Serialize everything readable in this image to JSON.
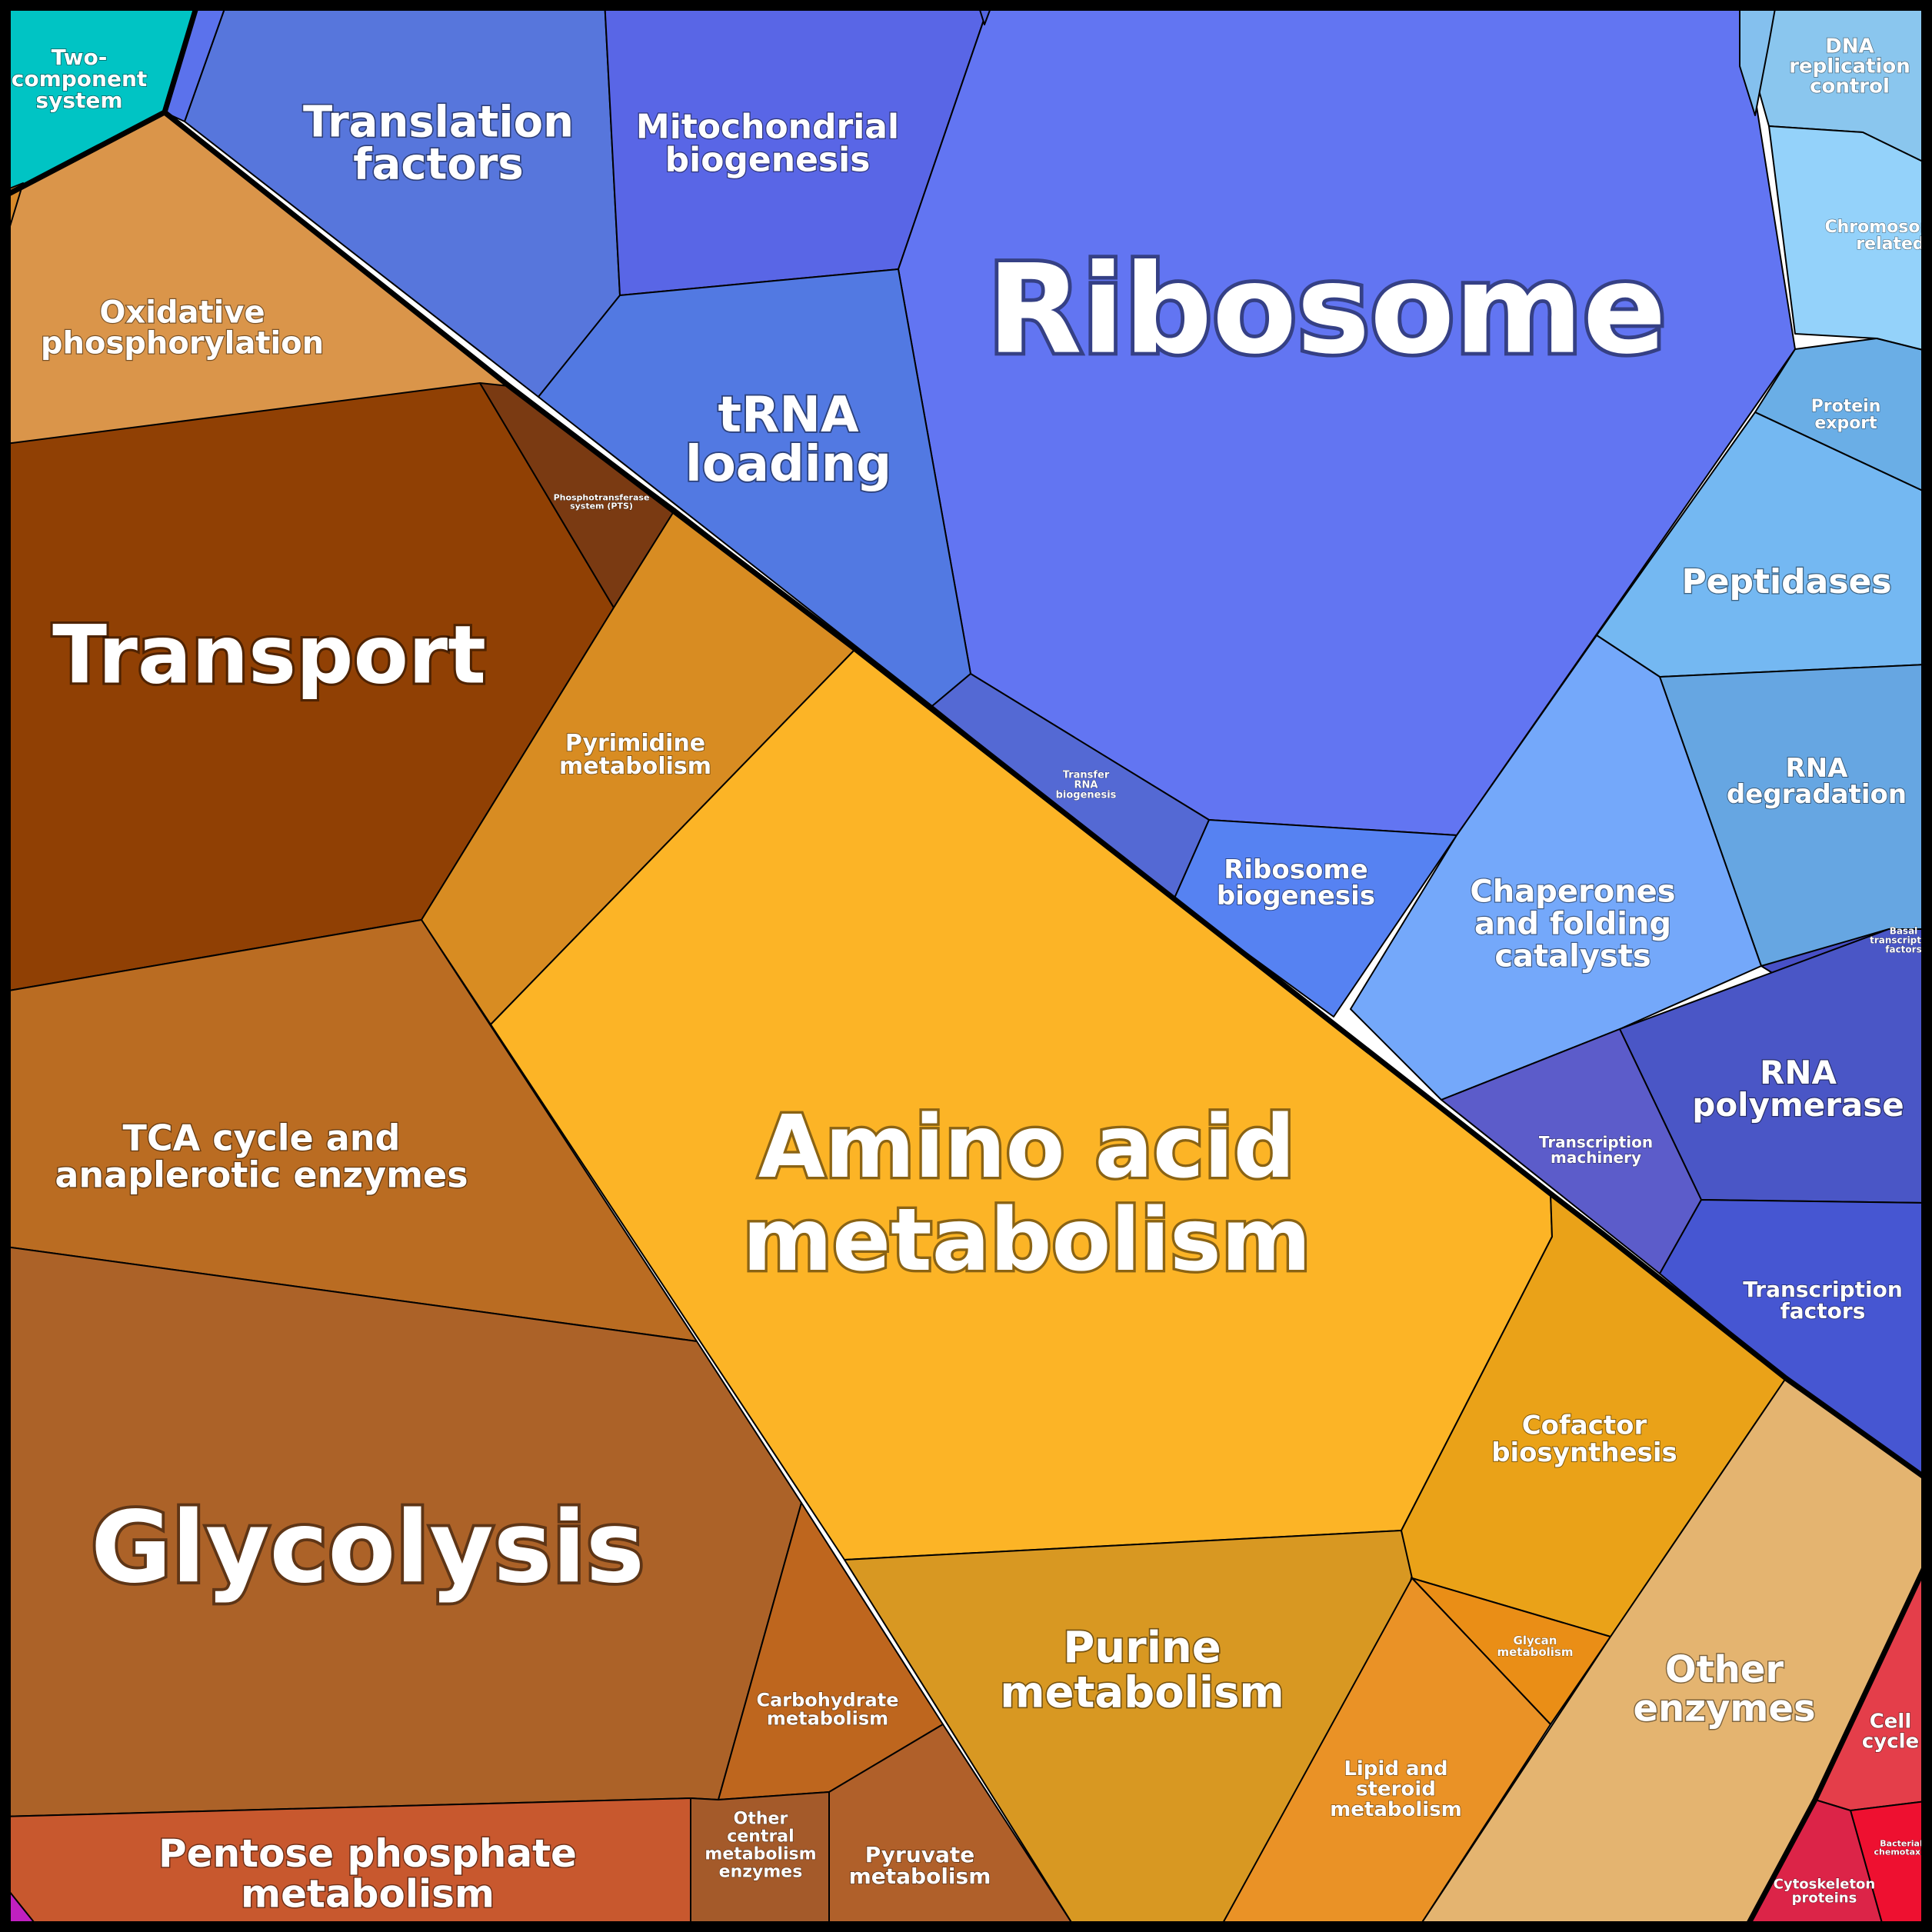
{
  "colors": {
    "metabolism": "#d99528",
    "genetic_information": "#5b72ec",
    "cellular_processes": "#66b3f0",
    "environmental": "#00c4c4"
  },
  "cells": [
    {
      "id": "two-component-system",
      "label": "Two-\ncomponent\nsystem",
      "color": "#00c4c4"
    },
    {
      "id": "translation-factors",
      "label": "Translation\nfactors",
      "color": "#5776dc"
    },
    {
      "id": "mitochondrial-biogenesis",
      "label": "Mitochondrial\nbiogenesis",
      "color": "#5966e6"
    },
    {
      "id": "ribosome",
      "label": "Ribosome",
      "color": "#6275f2"
    },
    {
      "id": "trna-loading",
      "label": "tRNA\nloading",
      "color": "#5279e2"
    },
    {
      "id": "transfer-rna-biogenesis",
      "label": "Transfer\nRNA\nbiogenesis",
      "color": "#5469d4"
    },
    {
      "id": "ribosome-biogenesis",
      "label": "Ribosome\nbiogenesis",
      "color": "#5682f2"
    },
    {
      "id": "dna-replication-control",
      "label": "DNA\nreplication\ncontrol",
      "color": "#8ac6ee"
    },
    {
      "id": "chromosome-related",
      "label": "Chromosome-\nrelated",
      "color": "#94d2fa"
    },
    {
      "id": "protein-export",
      "label": "Protein\nexport",
      "color": "#6aaee6"
    },
    {
      "id": "peptidases",
      "label": "Peptidases",
      "color": "#74b8f2"
    },
    {
      "id": "rna-degradation",
      "label": "RNA\ndegradation",
      "color": "#66a6e2"
    },
    {
      "id": "chaperones",
      "label": "Chaperones\nand folding\ncatalysts",
      "color": "#74a8fa"
    },
    {
      "id": "basal-transcription-factors",
      "label": "Basal\ntranscription\nfactors",
      "color": "#4850c6"
    },
    {
      "id": "rna-polymerase",
      "label": "RNA\npolymerase",
      "color": "#4a56c6"
    },
    {
      "id": "transcription-machinery",
      "label": "Transcription\nmachinery",
      "color": "#5c5cca"
    },
    {
      "id": "transcription-factors",
      "label": "Transcription\nfactors",
      "color": "#4656d2"
    },
    {
      "id": "oxidative-phosphorylation",
      "label": "Oxidative\nphosphorylation",
      "color": "#da954a"
    },
    {
      "id": "transport",
      "label": "Transport",
      "color": "#904004"
    },
    {
      "id": "phosphotransferase-system",
      "label": "Phosphotransferase\nsystem (PTS)",
      "color": "#7a3a12"
    },
    {
      "id": "pyrimidine-metabolism",
      "label": "Pyrimidine\nmetabolism",
      "color": "#d88c22"
    },
    {
      "id": "amino-acid-metabolism",
      "label": "Amino acid\nmetabolism",
      "color": "#fcb426"
    },
    {
      "id": "tca-cycle",
      "label": "TCA cycle and\nanaplerotic enzymes",
      "color": "#ba6c22"
    },
    {
      "id": "glycolysis",
      "label": "Glycolysis",
      "color": "#ac6228"
    },
    {
      "id": "carbohydrate-metabolism",
      "label": "Carbohydrate\nmetabolism",
      "color": "#be661e"
    },
    {
      "id": "pentose-phosphate-metabolism",
      "label": "Pentose phosphate\nmetabolism",
      "color": "#c8582e"
    },
    {
      "id": "other-central-metabolism-enzymes",
      "label": "Other\ncentral\nmetabolism\nenzymes",
      "color": "#a45a2a"
    },
    {
      "id": "pyruvate-metabolism",
      "label": "Pyruvate\nmetabolism",
      "color": "#b0602a"
    },
    {
      "id": "purine-metabolism",
      "label": "Purine\nmetabolism",
      "color": "#d89822"
    },
    {
      "id": "cofactor-biosynthesis",
      "label": "Cofactor\nbiosynthesis",
      "color": "#eaa218"
    },
    {
      "id": "glycan-metabolism",
      "label": "Glycan\nmetabolism",
      "color": "#ea8e16"
    },
    {
      "id": "lipid-and-steroid-metabolism",
      "label": "Lipid and\nsteroid\nmetabolism",
      "color": "#ea9226"
    },
    {
      "id": "other-enzymes",
      "label": "Other\nenzymes",
      "color": "#e4b470"
    },
    {
      "id": "cell-cycle",
      "label": "Cell\ncycle",
      "color": "#e43e4a"
    },
    {
      "id": "bacterial-chemotaxis",
      "label": "Bacterial\nchemotaxis",
      "color": "#ee1030"
    },
    {
      "id": "cytoskeleton-proteins",
      "label": "Cytoskeleton\nproteins",
      "color": "#dc2448"
    },
    {
      "id": "unlabeled-magenta",
      "label": "",
      "color": "#c020c0"
    },
    {
      "id": "unlabeled-blue-sliver",
      "label": "",
      "color": "#5b72ec"
    },
    {
      "id": "unlabeled-orange-sliver",
      "label": "",
      "color": "#d88a2a"
    },
    {
      "id": "unlabeled-blue-small-1",
      "label": "",
      "color": "#5466e0"
    },
    {
      "id": "unlabeled-blue-small-2",
      "label": "",
      "color": "#84c0ee"
    }
  ]
}
